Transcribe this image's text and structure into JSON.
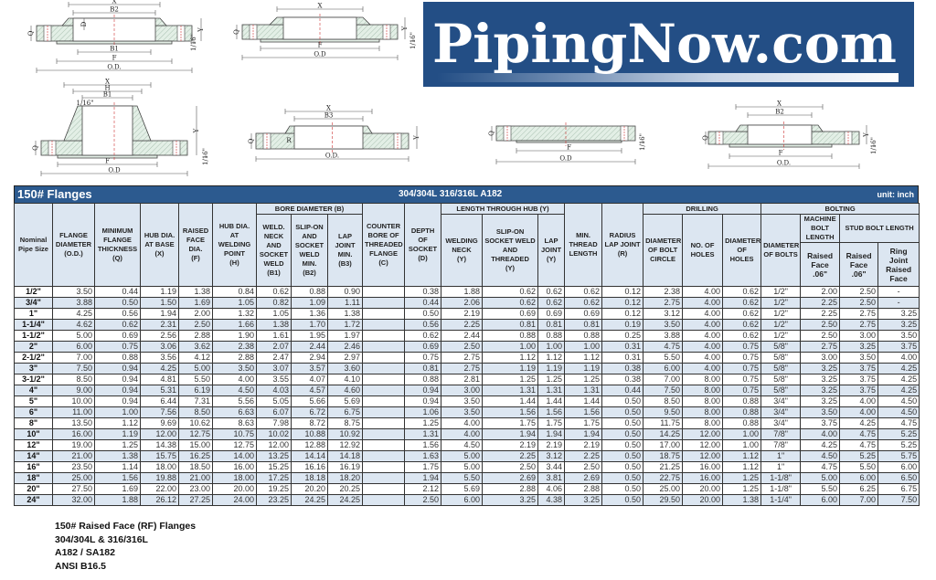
{
  "logo": {
    "text": "PipingNow.com",
    "bg_color": "#234e85"
  },
  "diagrams": [
    {
      "name": "slip-on-flange",
      "labels": [
        "X",
        "B2",
        "D",
        "Q",
        "Y",
        "B1",
        "F",
        "O.D.",
        "1/16\""
      ]
    },
    {
      "name": "threaded-flange",
      "labels": [
        "X",
        "Q",
        "Y",
        "F",
        "O.D",
        "1/16\""
      ]
    },
    {
      "name": "weld-neck-flange",
      "labels": [
        "X",
        "H",
        "B1",
        "1/16\"",
        "Y",
        "Q",
        "F",
        "O.D",
        "1/16\""
      ]
    },
    {
      "name": "lap-joint-flange",
      "labels": [
        "X",
        "B3",
        "Q",
        "R",
        "Y",
        "O.D."
      ]
    },
    {
      "name": "blind-flange",
      "labels": [
        "Q",
        "F",
        "O.D",
        "1/16\""
      ]
    },
    {
      "name": "socket-weld-flange",
      "labels": [
        "X",
        "B2",
        "Q",
        "Y",
        "F",
        "O.D.",
        "1/16\""
      ]
    }
  ],
  "title_bar": {
    "title": "150# Flanges",
    "materials": "304/304L  316/316L  A182",
    "unit": "unit: inch",
    "color": "#2c5a8f"
  },
  "headers": {
    "nominal": "Nominal\nPipe Size",
    "od": "FLANGE\nDIAMETER\n(O.D.)",
    "q": "MINIMUM\nFLANGE\nTHICKNESS\n(Q)",
    "x": "HUB DIA.\nAT BASE\n(X)",
    "f": "RAISED\nFACE\nDIA.\n(F)",
    "h": "HUB DIA.\nAT\nWELDING\nPOINT\n(H)",
    "bore_group": "BORE DIAMETER (B)",
    "b1": "WELD.\nNECK\nAND\nSOCKET\nWELD\n(B1)",
    "b2": "SLIP-ON\nAND\nSOCKET\nWELD\nMIN.\n(B2)",
    "b3": "LAP\nJOINT\nMIN.\n(B3)",
    "c": "COUNTER\nBORE OF\nTHREADED\nFLANGE\n(C)",
    "d": "DEPTH\nOF\nSOCKET\n(D)",
    "hub_group": "LENGTH THROUGH HUB (Y)",
    "wn": "WELDING\nNECK\n(Y)",
    "so": "SLIP-ON\nSOCKET WELD\nAND\nTHREADED\n(Y)",
    "lj": "LAP\nJOINT\n(Y)",
    "thread": "MIN.\nTHREAD\nLENGTH",
    "r": "RADIUS\nLAP JOINT\n(R)",
    "drilling_group": "DRILLING",
    "bc": "DIAMETER\nOF BOLT\nCIRCLE",
    "holes": "NO. OF\nHOLES",
    "dholes": "DIAMETER\nOF HOLES",
    "bolting_group": "BOLTING",
    "dbolts": "DIAMETER\nOF BOLTS",
    "machine": "MACHINE\nBOLT\nLENGTH",
    "stud": "STUD BOLT LENGTH",
    "machine_rf": "Raised\nFace\n.06\"",
    "stud_rf": "Raised\nFace\n.06\"",
    "stud_rj": "Ring Joint\nRaised\nFace"
  },
  "rows": [
    [
      "1/2\"",
      "3.50",
      "0.44",
      "1.19",
      "1.38",
      "0.84",
      "0.62",
      "0.88",
      "0.90",
      "",
      "0.38",
      "1.88",
      "0.62",
      "0.62",
      "0.62",
      "0.12",
      "2.38",
      "4.00",
      "0.62",
      "1/2\"",
      "2.00",
      "2.50",
      "-"
    ],
    [
      "3/4\"",
      "3.88",
      "0.50",
      "1.50",
      "1.69",
      "1.05",
      "0.82",
      "1.09",
      "1.11",
      "",
      "0.44",
      "2.06",
      "0.62",
      "0.62",
      "0.62",
      "0.12",
      "2.75",
      "4.00",
      "0.62",
      "1/2\"",
      "2.25",
      "2.50",
      "-"
    ],
    [
      "1\"",
      "4.25",
      "0.56",
      "1.94",
      "2.00",
      "1.32",
      "1.05",
      "1.36",
      "1.38",
      "",
      "0.50",
      "2.19",
      "0.69",
      "0.69",
      "0.69",
      "0.12",
      "3.12",
      "4.00",
      "0.62",
      "1/2\"",
      "2.25",
      "2.75",
      "3.25"
    ],
    [
      "1-1/4\"",
      "4.62",
      "0.62",
      "2.31",
      "2.50",
      "1.66",
      "1.38",
      "1.70",
      "1.72",
      "",
      "0.56",
      "2.25",
      "0.81",
      "0.81",
      "0.81",
      "0.19",
      "3.50",
      "4.00",
      "0.62",
      "1/2\"",
      "2.50",
      "2.75",
      "3.25"
    ],
    [
      "1-1/2\"",
      "5.00",
      "0.69",
      "2.56",
      "2.88",
      "1.90",
      "1.61",
      "1.95",
      "1.97",
      "",
      "0.62",
      "2.44",
      "0.88",
      "0.88",
      "0.88",
      "0.25",
      "3.88",
      "4.00",
      "0.62",
      "1/2\"",
      "2.50",
      "3.00",
      "3.50"
    ],
    [
      "2\"",
      "6.00",
      "0.75",
      "3.06",
      "3.62",
      "2.38",
      "2.07",
      "2.44",
      "2.46",
      "",
      "0.69",
      "2.50",
      "1.00",
      "1.00",
      "1.00",
      "0.31",
      "4.75",
      "4.00",
      "0.75",
      "5/8\"",
      "2.75",
      "3.25",
      "3.75"
    ],
    [
      "2-1/2\"",
      "7.00",
      "0.88",
      "3.56",
      "4.12",
      "2.88",
      "2.47",
      "2.94",
      "2.97",
      "",
      "0.75",
      "2.75",
      "1.12",
      "1.12",
      "1.12",
      "0.31",
      "5.50",
      "4.00",
      "0.75",
      "5/8\"",
      "3.00",
      "3.50",
      "4.00"
    ],
    [
      "3\"",
      "7.50",
      "0.94",
      "4.25",
      "5.00",
      "3.50",
      "3.07",
      "3.57",
      "3.60",
      "",
      "0.81",
      "2.75",
      "1.19",
      "1.19",
      "1.19",
      "0.38",
      "6.00",
      "4.00",
      "0.75",
      "5/8\"",
      "3.25",
      "3.75",
      "4.25"
    ],
    [
      "3-1/2\"",
      "8.50",
      "0.94",
      "4.81",
      "5.50",
      "4.00",
      "3.55",
      "4.07",
      "4.10",
      "",
      "0.88",
      "2.81",
      "1.25",
      "1.25",
      "1.25",
      "0.38",
      "7.00",
      "8.00",
      "0.75",
      "5/8\"",
      "3.25",
      "3.75",
      "4.25"
    ],
    [
      "4\"",
      "9.00",
      "0.94",
      "5.31",
      "6.19",
      "4.50",
      "4.03",
      "4.57",
      "4.60",
      "",
      "0.94",
      "3.00",
      "1.31",
      "1.31",
      "1.31",
      "0.44",
      "7.50",
      "8.00",
      "0.75",
      "5/8\"",
      "3.25",
      "3.75",
      "4.25"
    ],
    [
      "5\"",
      "10.00",
      "0.94",
      "6.44",
      "7.31",
      "5.56",
      "5.05",
      "5.66",
      "5.69",
      "",
      "0.94",
      "3.50",
      "1.44",
      "1.44",
      "1.44",
      "0.50",
      "8.50",
      "8.00",
      "0.88",
      "3/4\"",
      "3.25",
      "4.00",
      "4.50"
    ],
    [
      "6\"",
      "11.00",
      "1.00",
      "7.56",
      "8.50",
      "6.63",
      "6.07",
      "6.72",
      "6.75",
      "",
      "1.06",
      "3.50",
      "1.56",
      "1.56",
      "1.56",
      "0.50",
      "9.50",
      "8.00",
      "0.88",
      "3/4\"",
      "3.50",
      "4.00",
      "4.50"
    ],
    [
      "8\"",
      "13.50",
      "1.12",
      "9.69",
      "10.62",
      "8.63",
      "7.98",
      "8.72",
      "8.75",
      "",
      "1.25",
      "4.00",
      "1.75",
      "1.75",
      "1.75",
      "0.50",
      "11.75",
      "8.00",
      "0.88",
      "3/4\"",
      "3.75",
      "4.25",
      "4.75"
    ],
    [
      "10\"",
      "16.00",
      "1.19",
      "12.00",
      "12.75",
      "10.75",
      "10.02",
      "10.88",
      "10.92",
      "",
      "1.31",
      "4.00",
      "1.94",
      "1.94",
      "1.94",
      "0.50",
      "14.25",
      "12.00",
      "1.00",
      "7/8\"",
      "4.00",
      "4.75",
      "5.25"
    ],
    [
      "12\"",
      "19.00",
      "1.25",
      "14.38",
      "15.00",
      "12.75",
      "12.00",
      "12.88",
      "12.92",
      "",
      "1.56",
      "4.50",
      "2.19",
      "2.19",
      "2.19",
      "0.50",
      "17.00",
      "12.00",
      "1.00",
      "7/8\"",
      "4.25",
      "4.75",
      "5.25"
    ],
    [
      "14\"",
      "21.00",
      "1.38",
      "15.75",
      "16.25",
      "14.00",
      "13.25",
      "14.14",
      "14.18",
      "",
      "1.63",
      "5.00",
      "2.25",
      "3.12",
      "2.25",
      "0.50",
      "18.75",
      "12.00",
      "1.12",
      "1\"",
      "4.50",
      "5.25",
      "5.75"
    ],
    [
      "16\"",
      "23.50",
      "1.14",
      "18.00",
      "18.50",
      "16.00",
      "15.25",
      "16.16",
      "16.19",
      "",
      "1.75",
      "5.00",
      "2.50",
      "3.44",
      "2.50",
      "0.50",
      "21.25",
      "16.00",
      "1.12",
      "1\"",
      "4.75",
      "5.50",
      "6.00"
    ],
    [
      "18\"",
      "25.00",
      "1.56",
      "19.88",
      "21.00",
      "18.00",
      "17.25",
      "18.18",
      "18.20",
      "",
      "1.94",
      "5.50",
      "2.69",
      "3.81",
      "2.69",
      "0.50",
      "22.75",
      "16.00",
      "1.25",
      "1-1/8\"",
      "5.00",
      "6.00",
      "6.50"
    ],
    [
      "20\"",
      "27.50",
      "1.69",
      "22.00",
      "23.00",
      "20.00",
      "19.25",
      "20.20",
      "20.25",
      "",
      "2.12",
      "5.69",
      "2.88",
      "4.06",
      "2.88",
      "0.50",
      "25.00",
      "20.00",
      "1.25",
      "1-1/8\"",
      "5.50",
      "6.25",
      "6.75"
    ],
    [
      "24\"",
      "32.00",
      "1.88",
      "26.12",
      "27.25",
      "24.00",
      "23.25",
      "24.25",
      "24.25",
      "",
      "2.50",
      "6.00",
      "3.25",
      "4.38",
      "3.25",
      "0.50",
      "29.50",
      "20.00",
      "1.38",
      "1-1/4\"",
      "6.00",
      "7.00",
      "7.50"
    ]
  ],
  "footer": [
    "150# Raised Face (RF) Flanges",
    "304/304L & 316/316L",
    "A182 / SA182",
    "ANSI B16.5"
  ]
}
